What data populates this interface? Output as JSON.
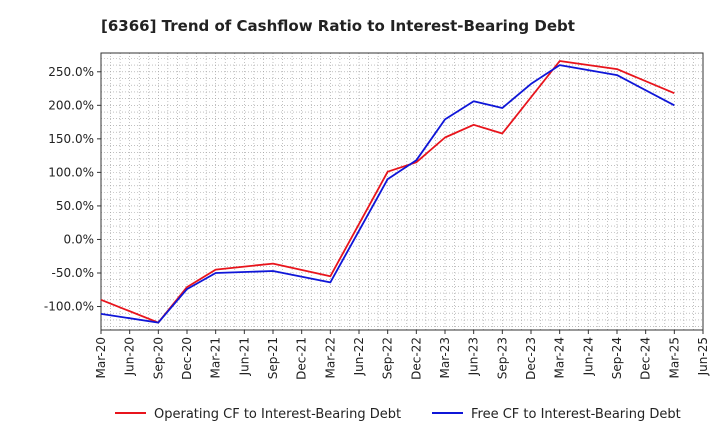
{
  "chart_data": {
    "type": "line",
    "title": "[6366]  Trend of Cashflow Ratio to Interest-Bearing Debt",
    "xlabel": "",
    "ylabel": "",
    "x_tick_labels": [
      "Mar-20",
      "Jun-20",
      "Sep-20",
      "Dec-20",
      "Mar-21",
      "Jun-21",
      "Sep-21",
      "Dec-21",
      "Mar-22",
      "Jun-22",
      "Sep-22",
      "Dec-22",
      "Mar-23",
      "Jun-23",
      "Sep-23",
      "Dec-23",
      "Mar-24",
      "Jun-24",
      "Sep-24",
      "Dec-24",
      "Mar-25",
      "Jun-25"
    ],
    "y_ticks": [
      -100,
      -50,
      0,
      50,
      100,
      150,
      200,
      250
    ],
    "y_tick_labels": [
      "-100.0%",
      "-50.0%",
      "0.0%",
      "50.0%",
      "100.0%",
      "150.0%",
      "200.0%",
      "250.0%"
    ],
    "ylim": [
      -135,
      278
    ],
    "grid": true,
    "legend_position": "bottom",
    "series": [
      {
        "name": "Operating CF to Interest-Bearing Debt",
        "color": "#e8141c",
        "x": [
          "Mar-20",
          "Sep-20",
          "Dec-20",
          "Mar-21",
          "Sep-21",
          "Mar-22",
          "Sep-22",
          "Dec-22",
          "Mar-23",
          "Jun-23",
          "Sep-23",
          "Mar-24",
          "Sep-24",
          "Mar-25"
        ],
        "values": [
          -90,
          -124,
          -71,
          -45,
          -36,
          -55,
          101,
          115,
          152,
          171,
          158,
          266,
          254,
          218
        ]
      },
      {
        "name": "Free CF to Interest-Bearing Debt",
        "color": "#0f16d8",
        "x": [
          "Mar-20",
          "Sep-20",
          "Dec-20",
          "Mar-21",
          "Sep-21",
          "Mar-22",
          "Sep-22",
          "Dec-22",
          "Mar-23",
          "Jun-23",
          "Sep-23",
          "Dec-23",
          "Mar-24",
          "Sep-24",
          "Mar-25"
        ],
        "values": [
          -111,
          -124,
          -74,
          -50,
          -47,
          -64,
          90,
          118,
          179,
          206,
          196,
          232,
          260,
          245,
          200
        ]
      }
    ]
  }
}
